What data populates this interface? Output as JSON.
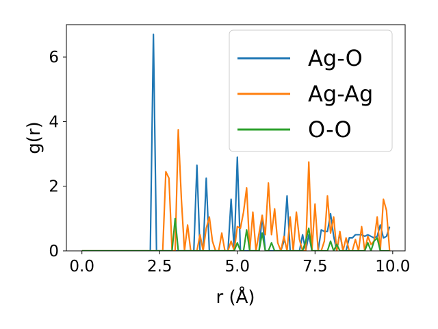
{
  "chart_data": {
    "type": "line",
    "title": "",
    "xlabel": "r (Å)",
    "ylabel": "g(r)",
    "xlim": [
      -0.5,
      10.4
    ],
    "ylim": [
      0,
      7.0
    ],
    "xticks": [
      {
        "value": 0.0,
        "label": "0.0"
      },
      {
        "value": 2.5,
        "label": "2.5"
      },
      {
        "value": 5.0,
        "label": "5.0"
      },
      {
        "value": 7.5,
        "label": "7.5"
      },
      {
        "value": 10.0,
        "label": "10.0"
      }
    ],
    "yticks": [
      {
        "value": 0,
        "label": "0"
      },
      {
        "value": 2,
        "label": "2"
      },
      {
        "value": 4,
        "label": "4"
      },
      {
        "value": 6,
        "label": "6"
      }
    ],
    "legend_position": "top-right",
    "grid": false,
    "series": [
      {
        "name": "Ag-O",
        "color": "#1f77b4",
        "x": [
          0.0,
          0.5,
          1.0,
          1.5,
          2.0,
          2.2,
          2.3,
          2.4,
          2.5,
          2.6,
          2.7,
          2.8,
          2.9,
          3.0,
          3.1,
          3.2,
          3.3,
          3.4,
          3.5,
          3.6,
          3.7,
          3.8,
          3.9,
          4.0,
          4.1,
          4.2,
          4.3,
          4.4,
          4.5,
          4.6,
          4.7,
          4.8,
          4.9,
          5.0,
          5.1,
          5.2,
          5.3,
          5.4,
          5.5,
          5.6,
          5.7,
          5.8,
          5.9,
          6.0,
          6.1,
          6.2,
          6.3,
          6.4,
          6.5,
          6.6,
          6.7,
          6.8,
          6.9,
          7.0,
          7.1,
          7.2,
          7.3,
          7.4,
          7.5,
          7.6,
          7.7,
          7.8,
          7.9,
          8.0,
          8.1,
          8.2,
          8.3,
          8.4,
          8.5,
          8.6,
          8.7,
          8.8,
          8.9,
          9.0,
          9.1,
          9.2,
          9.3,
          9.4,
          9.5,
          9.6,
          9.7,
          9.8,
          9.9
        ],
        "y": [
          0,
          0,
          0,
          0,
          0,
          0,
          6.7,
          0,
          0,
          0,
          0,
          0,
          0,
          0,
          0,
          0,
          0,
          0,
          0,
          0,
          2.65,
          0,
          0,
          2.25,
          0,
          0,
          0,
          0,
          0,
          0,
          0,
          1.6,
          0,
          2.9,
          0,
          0,
          0,
          0,
          0,
          0,
          0,
          1.1,
          0,
          0,
          0,
          0,
          0,
          0,
          0.3,
          1.7,
          0,
          0,
          0,
          0,
          0.5,
          0,
          0.5,
          0,
          0,
          0,
          0.65,
          0.6,
          0.6,
          1.15,
          0.45,
          0,
          0.55,
          0,
          0,
          0.4,
          0.4,
          0.5,
          0.5,
          0.5,
          0.45,
          0.5,
          0.45,
          0.4,
          0.45,
          0.8,
          0.4,
          0.45,
          0.75
        ]
      },
      {
        "name": "Ag-Ag",
        "color": "#ff7f0e",
        "x": [
          0.0,
          0.5,
          1.0,
          1.5,
          2.0,
          2.5,
          2.6,
          2.7,
          2.8,
          2.9,
          3.0,
          3.1,
          3.2,
          3.3,
          3.4,
          3.5,
          3.6,
          3.7,
          3.8,
          3.9,
          4.0,
          4.1,
          4.2,
          4.3,
          4.4,
          4.5,
          4.6,
          4.7,
          4.8,
          4.9,
          5.0,
          5.1,
          5.2,
          5.3,
          5.4,
          5.5,
          5.6,
          5.7,
          5.8,
          5.9,
          6.0,
          6.1,
          6.2,
          6.3,
          6.4,
          6.5,
          6.6,
          6.7,
          6.8,
          6.9,
          7.0,
          7.1,
          7.2,
          7.3,
          7.4,
          7.5,
          7.6,
          7.7,
          7.8,
          7.9,
          8.0,
          8.1,
          8.2,
          8.3,
          8.4,
          8.5,
          8.6,
          8.7,
          8.8,
          8.9,
          9.0,
          9.1,
          9.2,
          9.3,
          9.4,
          9.5,
          9.6,
          9.7,
          9.8,
          9.9
        ],
        "y": [
          0,
          0,
          0,
          0,
          0,
          0,
          0,
          2.45,
          2.25,
          0,
          0,
          3.75,
          1.6,
          0,
          0.8,
          0,
          0,
          0,
          0.5,
          0,
          0.7,
          1.05,
          0.3,
          0,
          0,
          0.55,
          0,
          0,
          0.3,
          0,
          0.75,
          0.7,
          1.2,
          1.95,
          0,
          1.2,
          0,
          0.55,
          1.1,
          0.5,
          2.1,
          0.5,
          1.3,
          0.25,
          0,
          0.45,
          0,
          1.05,
          0,
          1.2,
          0.35,
          0,
          0,
          2.75,
          0,
          1.45,
          0,
          0,
          0.3,
          1.7,
          0.55,
          1.05,
          0,
          0.6,
          0,
          0.4,
          0,
          0,
          0.35,
          0,
          0.75,
          0,
          0.45,
          0.2,
          0.3,
          1.05,
          0,
          1.6,
          1.25,
          0
        ],
        "comment_none": ""
      },
      {
        "name": "O-O",
        "color": "#2ca02c",
        "x": [
          0.0,
          0.5,
          1.0,
          1.5,
          2.0,
          2.5,
          2.8,
          2.9,
          3.0,
          3.1,
          3.2,
          3.3,
          3.4,
          3.5,
          3.6,
          3.7,
          3.8,
          3.9,
          4.0,
          4.1,
          4.2,
          4.3,
          4.4,
          4.5,
          4.6,
          4.7,
          4.8,
          4.9,
          5.0,
          5.1,
          5.2,
          5.3,
          5.4,
          5.5,
          5.6,
          5.7,
          5.8,
          5.9,
          6.0,
          6.1,
          6.2,
          6.3,
          6.4,
          6.5,
          6.6,
          6.7,
          6.8,
          6.9,
          7.0,
          7.1,
          7.2,
          7.3,
          7.4,
          7.5,
          7.6,
          7.7,
          7.8,
          7.9,
          8.0,
          8.1,
          8.2,
          8.3,
          8.4,
          8.5,
          8.6,
          8.7,
          8.8,
          8.9,
          9.0,
          9.1,
          9.2,
          9.3,
          9.4,
          9.5,
          9.6,
          9.7,
          9.8,
          9.9
        ],
        "y": [
          0,
          0,
          0,
          0,
          0,
          0,
          0,
          0,
          1.0,
          0,
          0,
          0,
          0,
          0,
          0,
          0,
          0,
          0,
          0,
          0,
          0,
          0,
          0,
          0,
          0,
          0,
          0,
          0,
          0.25,
          0,
          0,
          0.65,
          0,
          0,
          0,
          0,
          0.55,
          0,
          0,
          0.25,
          0,
          0,
          0,
          0,
          0,
          0,
          0,
          0,
          0,
          0,
          0.3,
          0.7,
          0,
          0,
          0,
          0,
          0,
          0,
          0.3,
          0,
          0.2,
          0,
          0,
          0,
          0,
          0,
          0,
          0,
          0,
          0,
          0.25,
          0,
          0.3,
          0.4,
          0,
          0,
          0,
          0
        ]
      }
    ]
  }
}
